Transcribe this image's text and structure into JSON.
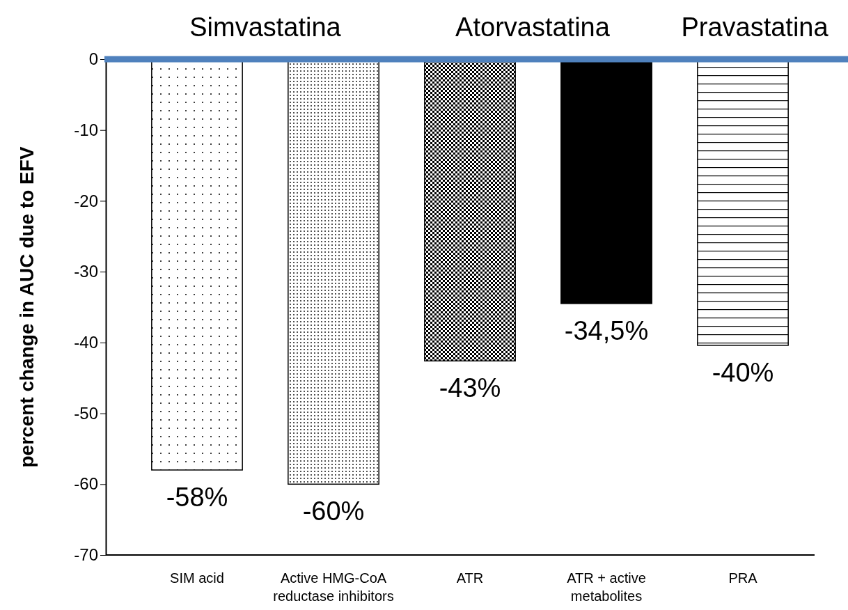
{
  "chart_data": {
    "type": "bar",
    "ylabel": "percent change in AUC due to EFV",
    "categories": [
      "SIM acid",
      "Active HMG-CoA reductase inhibitors",
      "ATR",
      "ATR + active metabolites",
      "PRA"
    ],
    "values": [
      -58,
      -60,
      -42.6,
      -34.5,
      -40.4
    ],
    "value_labels": [
      "-58%",
      "-60%",
      "-43%",
      "-34,5%",
      "-40%"
    ],
    "colors": [
      "#000000",
      "#000000",
      "#000000",
      "#000000",
      "#000000"
    ],
    "ylim": [
      -70,
      0
    ],
    "yticks": [
      0,
      -10,
      -20,
      -30,
      -40,
      -50,
      -60,
      -70
    ],
    "ref_lines": [
      {
        "axis": "y",
        "value": 0,
        "color": "#4f81bd"
      }
    ],
    "annotations": [
      "Simvastatina",
      "Atorvastatina",
      "Pravastatina"
    ],
    "grid": false
  }
}
